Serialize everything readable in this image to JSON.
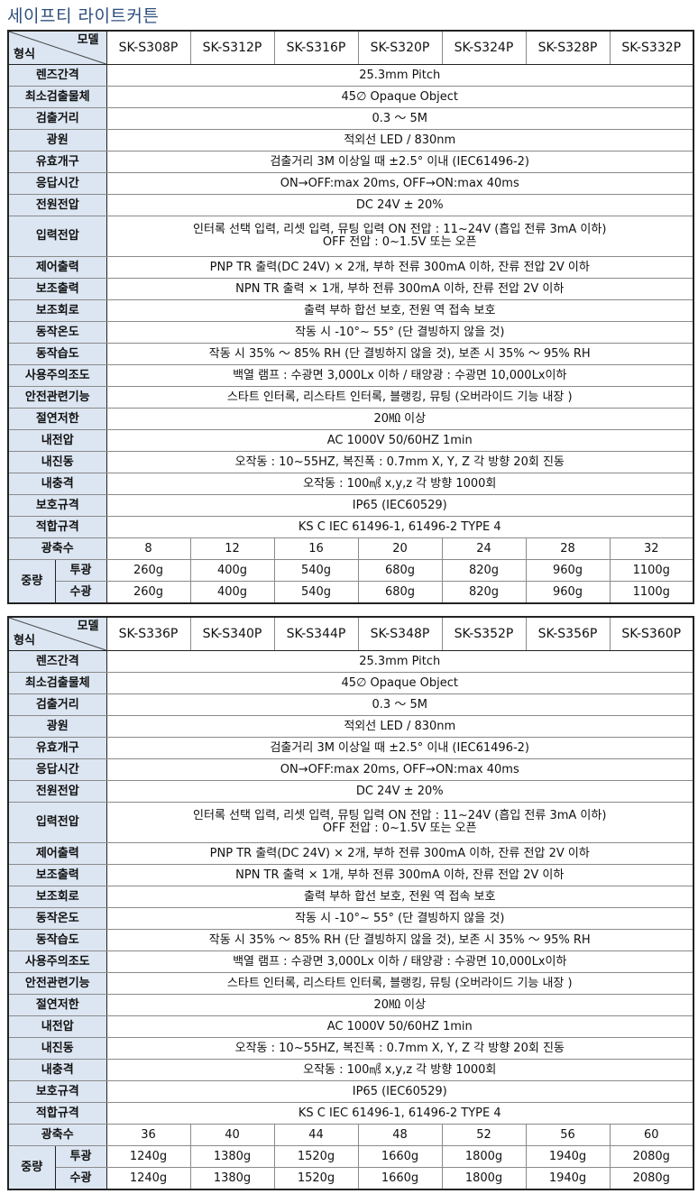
{
  "title": "세이프티 라이트커튼",
  "corner": {
    "model_label": "모델",
    "type_label": "형식"
  },
  "common_rows": [
    {
      "label": "렌즈간격",
      "value": "25.3mm Pitch"
    },
    {
      "label": "최소검출물체",
      "value": "45∅ Opaque Object"
    },
    {
      "label": "검출거리",
      "value": "0.3 ～ 5M"
    },
    {
      "label": "광원",
      "value": "적외선 LED / 830nm"
    },
    {
      "label": "유효개구",
      "value": "검출거리 3M 이상일 때 ±2.5° 이내 (IEC61496-2)"
    },
    {
      "label": "응답시간",
      "value": "ON→OFF:max 20ms, OFF→ON:max 40ms"
    },
    {
      "label": "전원전압",
      "value": "DC 24V ± 20%"
    },
    {
      "label": "입력전압",
      "value": "인터록 선택 입력, 리셋 입력, 뮤팅 입력 ON 전압 : 11~24V (흡입 전류 3mA 이하)",
      "value2": "OFF 전압 : 0~1.5V 또는 오픈"
    },
    {
      "label": "제어출력",
      "value": "PNP TR 출력(DC 24V) × 2개, 부하 전류 300mA 이하, 잔류 전압 2V 이하"
    },
    {
      "label": "보조출력",
      "value": "NPN TR 출력 × 1개, 부하 전류 300mA 이하, 잔류 전압 2V 이하"
    },
    {
      "label": "보조회로",
      "value": "출력 부하 합선 보호, 전원 역 접속 보호"
    },
    {
      "label": "동작온도",
      "value": "작동 시 -10°~ 55° (단 결빙하지 않을 것)"
    },
    {
      "label": "동작습도",
      "value": "작동 시 35% ～ 85% RH (단 결빙하지 않을 것), 보존 시 35% ～ 95% RH"
    },
    {
      "label": "사용주의조도",
      "value": "백열 램프 : 수광면 3,000Lx 이하 / 태양광 : 수광면 10,000Lx이하"
    },
    {
      "label": "안전관련기능",
      "value": "스타트 인터록, 리스타트 인터록, 블랭킹, 뮤팅 (오버라이드 기능 내장 )"
    },
    {
      "label": "절연저한",
      "value": "20㏁ 이상"
    },
    {
      "label": "내전압",
      "value": "AC 1000V 50/60HZ 1min"
    },
    {
      "label": "내진동",
      "value": "오작동 : 10~55HZ, 복진폭 : 0.7mm X, Y, Z 각 방향 20회 진동"
    },
    {
      "label": "내충격",
      "value": "오작동 : 100㎨ x,y,z 각 방향 1000회"
    },
    {
      "label": "보호규격",
      "value": "IP65 (IEC60529)"
    },
    {
      "label": "적합규격",
      "value": "KS C IEC 61496-1, 61496-2 TYPE 4"
    }
  ],
  "axis_label": "광축수",
  "weight_label": "중량",
  "emitter_label": "투광",
  "receiver_label": "수광",
  "tables": [
    {
      "models": [
        "SK-S308P",
        "SK-S312P",
        "SK-S316P",
        "SK-S320P",
        "SK-S324P",
        "SK-S328P",
        "SK-S332P"
      ],
      "axes": [
        "8",
        "12",
        "16",
        "20",
        "24",
        "28",
        "32"
      ],
      "emitter": [
        "260g",
        "400g",
        "540g",
        "680g",
        "820g",
        "960g",
        "1100g"
      ],
      "receiver": [
        "260g",
        "400g",
        "540g",
        "680g",
        "820g",
        "960g",
        "1100g"
      ]
    },
    {
      "models": [
        "SK-S336P",
        "SK-S340P",
        "SK-S344P",
        "SK-S348P",
        "SK-S352P",
        "SK-S356P",
        "SK-S360P"
      ],
      "axes": [
        "36",
        "40",
        "44",
        "48",
        "52",
        "56",
        "60"
      ],
      "emitter": [
        "1240g",
        "1380g",
        "1520g",
        "1660g",
        "1800g",
        "1940g",
        "2080g"
      ],
      "receiver": [
        "1240g",
        "1380g",
        "1520g",
        "1660g",
        "1800g",
        "1940g",
        "2080g"
      ]
    }
  ]
}
